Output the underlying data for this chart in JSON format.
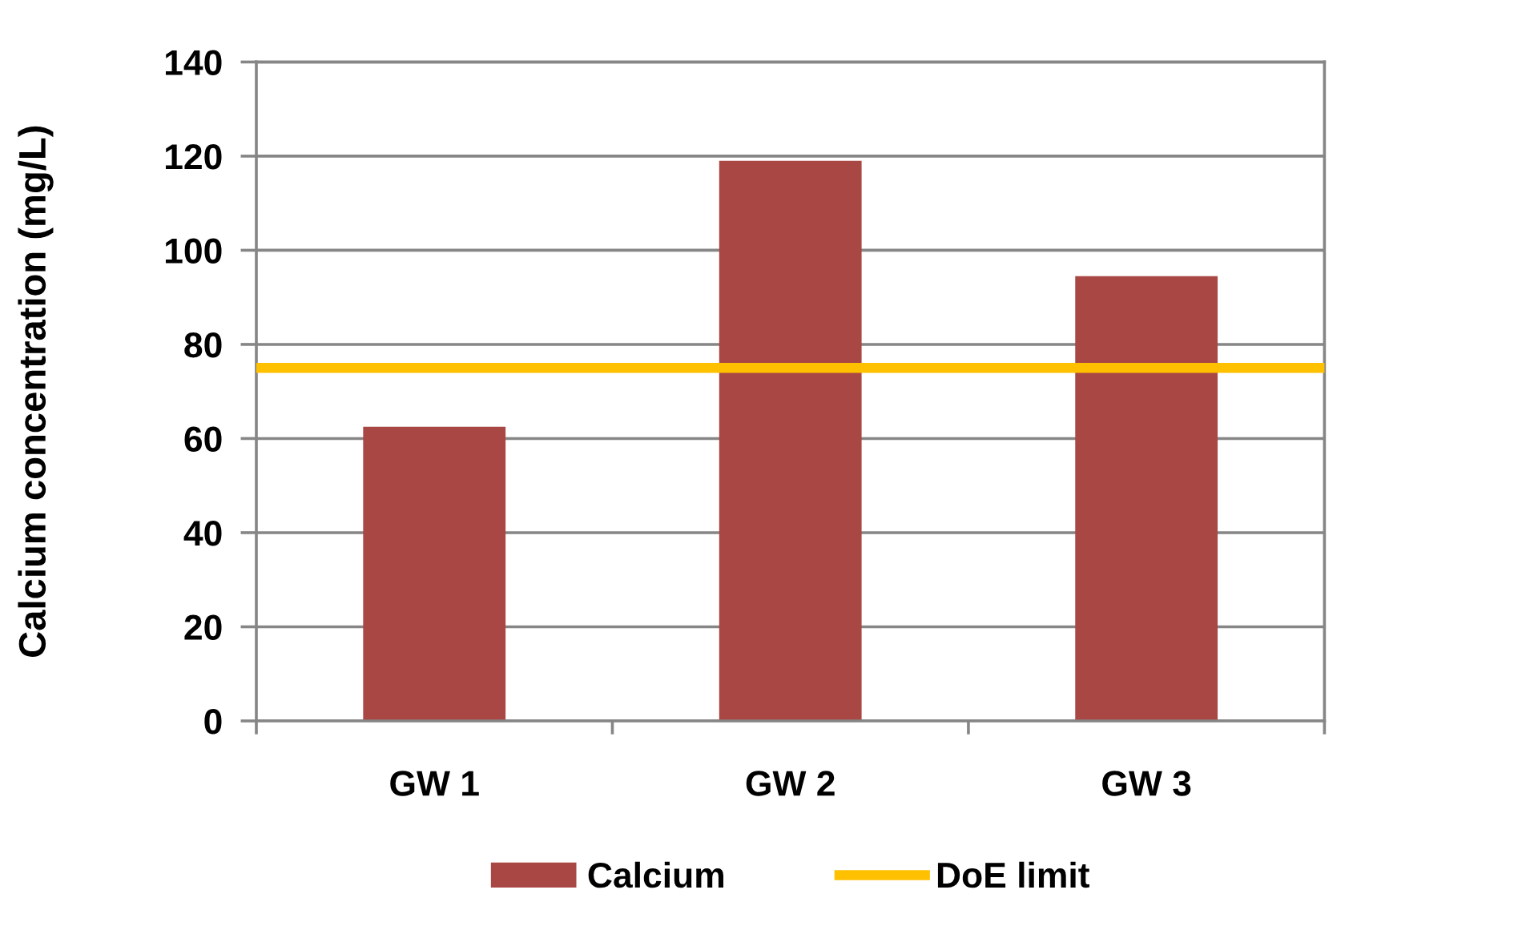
{
  "chart_data": {
    "type": "bar",
    "ylabel": "Calcium concentration (mg/L)",
    "categories": [
      "GW 1",
      "GW 2",
      "GW 3"
    ],
    "series": [
      {
        "name": "Calcium",
        "color": "#a94744",
        "values": [
          62.5,
          119,
          94.5
        ]
      }
    ],
    "ylim": [
      0,
      140
    ],
    "yticks": [
      0,
      20,
      40,
      60,
      80,
      100,
      120,
      140
    ],
    "grid": "y",
    "legend": "bottom",
    "ref_lines": [
      {
        "axis": "y",
        "value": 75,
        "label": "DoE limit",
        "color": "#ffc000"
      }
    ]
  }
}
